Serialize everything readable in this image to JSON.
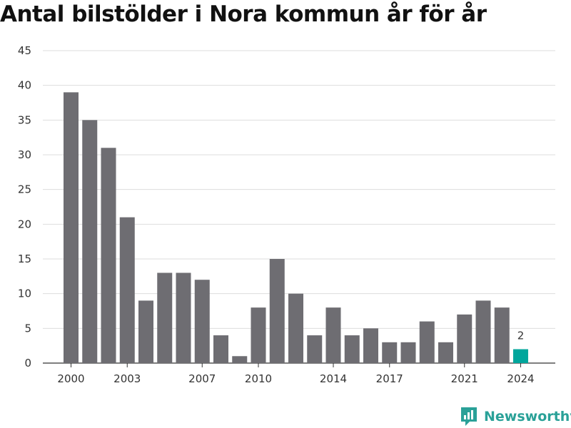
{
  "title": "Antal bilstölder i Nora kommun år för år",
  "brand": {
    "name": "Newsworthy",
    "icon": "newsworthy-logo-icon",
    "color": "#2aa198"
  },
  "chart_data": {
    "type": "bar",
    "title": "Antal bilstölder i Nora kommun år för år",
    "xlabel": "",
    "ylabel": "",
    "categories": [
      2000,
      2001,
      2002,
      2003,
      2004,
      2005,
      2006,
      2007,
      2008,
      2009,
      2010,
      2011,
      2012,
      2013,
      2014,
      2015,
      2016,
      2017,
      2018,
      2019,
      2020,
      2021,
      2022,
      2023,
      2024
    ],
    "values": [
      39,
      35,
      31,
      21,
      9,
      13,
      13,
      12,
      4,
      1,
      8,
      15,
      10,
      4,
      8,
      4,
      5,
      3,
      3,
      6,
      3,
      7,
      9,
      8,
      2
    ],
    "ylim": [
      0,
      45
    ],
    "yticks": [
      0,
      5,
      10,
      15,
      20,
      25,
      30,
      35,
      40,
      45
    ],
    "xticks": [
      2000,
      2003,
      2007,
      2010,
      2014,
      2017,
      2021,
      2024
    ],
    "highlight": {
      "category": 2024,
      "label": "2"
    },
    "grid": true,
    "colors": {
      "bar": "#6e6d72",
      "highlight": "#00a69c",
      "grid": "#dddddd",
      "axis": "#333333"
    }
  }
}
